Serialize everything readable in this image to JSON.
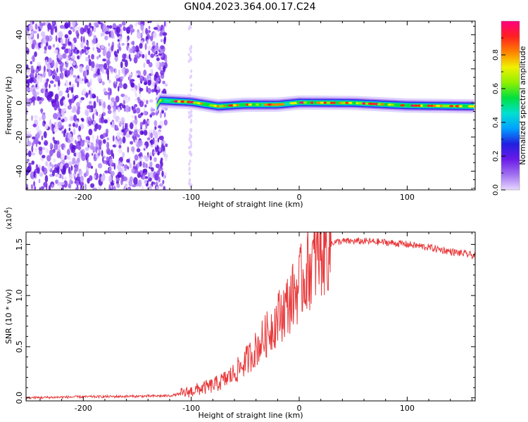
{
  "title": "GN04.2023.364.00.17.C24",
  "chart_data": [
    {
      "type": "heatmap",
      "name": "spectrogram",
      "xlabel": "Height of straight line (km)",
      "ylabel": "Frequency (Hz)",
      "xlim": [
        -253,
        163
      ],
      "ylim": [
        -51,
        48
      ],
      "xticks": [
        -200,
        -100,
        0,
        100
      ],
      "yticks": [
        -40,
        -20,
        0,
        20,
        40
      ],
      "colorbar": {
        "label": "Normalized spectral amplitude",
        "range": [
          0,
          1
        ],
        "ticks": [
          0.0,
          0.2,
          0.4,
          0.6,
          0.8
        ],
        "tick_labels": [
          "0.0",
          "0.2",
          "0.4",
          "0.6",
          "0.8"
        ],
        "colormap": [
          "#e8d8ff",
          "#a070f0",
          "#6a1ae8",
          "#2020e0",
          "#00a0ff",
          "#00e0d0",
          "#00e040",
          "#90f000",
          "#f0f000",
          "#ff8000",
          "#ff2020",
          "#ff0080"
        ]
      },
      "noise_region_x": [
        -253,
        -123
      ],
      "sparse_column_x": -101,
      "signal_band": {
        "start_x": -132,
        "center_freq_hz": [
          {
            "x": -130,
            "f": 1.5
          },
          {
            "x": -100,
            "f": 0.5
          },
          {
            "x": -75,
            "f": -2
          },
          {
            "x": -50,
            "f": -1
          },
          {
            "x": -20,
            "f": -1
          },
          {
            "x": 0,
            "f": 0.2
          },
          {
            "x": 50,
            "f": 0
          },
          {
            "x": 100,
            "f": -1.5
          },
          {
            "x": 163,
            "f": -2
          }
        ]
      }
    },
    {
      "type": "line",
      "name": "snr",
      "xlabel": "Height of straight line (km)",
      "ylabel": "SNR (10 * v/v)",
      "y_multiplier_label": "(x10",
      "y_multiplier_exp": "4",
      "y_multiplier_close": ")",
      "xlim": [
        -253,
        163
      ],
      "ylim": [
        -0.03,
        1.62
      ],
      "xticks": [
        -200,
        -100,
        0,
        100
      ],
      "yticks": [
        0.0,
        0.5,
        1.0,
        1.5
      ],
      "ytick_labels": [
        "0.0",
        "0.5",
        "1.0",
        "1.5"
      ],
      "color": "#e8383a",
      "series": [
        {
          "x": [
            -253,
            -200,
            -150,
            -120,
            -105,
            -95,
            -80,
            -70,
            -60,
            -50,
            -40,
            -30,
            -20,
            -10,
            0,
            10,
            20,
            30,
            40,
            60,
            80,
            100,
            120,
            140,
            163
          ],
          "values": [
            0.0,
            0.01,
            0.015,
            0.02,
            0.05,
            0.08,
            0.12,
            0.17,
            0.24,
            0.35,
            0.48,
            0.62,
            0.78,
            0.92,
            1.1,
            1.28,
            1.42,
            1.52,
            1.53,
            1.53,
            1.52,
            1.5,
            1.47,
            1.43,
            1.39
          ]
        }
      ]
    }
  ]
}
